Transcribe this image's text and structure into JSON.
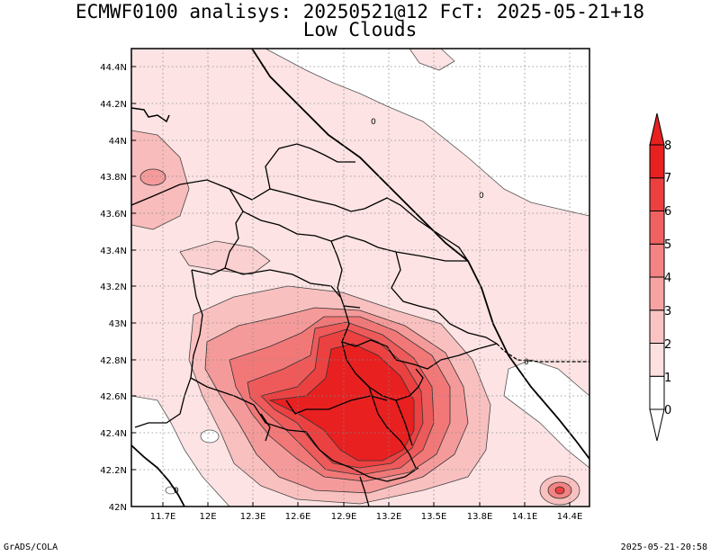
{
  "title": {
    "line1": "ECMWF0100 analisys: 20250521@12 FcT: 2025-05-21+18",
    "line2": "Low Clouds"
  },
  "map": {
    "lat_labels": [
      "42N",
      "42.2N",
      "42.4N",
      "42.6N",
      "42.8N",
      "43N",
      "43.2N",
      "43.4N",
      "43.6N",
      "43.8N",
      "44N",
      "44.2N",
      "44.4N"
    ],
    "lon_labels": [
      "11.7E",
      "12E",
      "12.3E",
      "12.6E",
      "12.9E",
      "13.2E",
      "13.5E",
      "13.8E",
      "14.1E",
      "14.4E"
    ],
    "contour_labels": [
      "0",
      "0",
      "0",
      "0"
    ],
    "grid": true,
    "field": "low cloud cover (oktas)"
  },
  "colorbar": {
    "labels": [
      "0",
      "1",
      "2",
      "3",
      "4",
      "5",
      "6",
      "7",
      "8"
    ],
    "colors": [
      "#ffffff",
      "#fde0e0",
      "#fbc4c4",
      "#f8a3a3",
      "#f48383",
      "#f06262",
      "#ec4040",
      "#e82020"
    ]
  },
  "footer": {
    "left": "GrADS/COLA",
    "right": "2025-05-21-20:58"
  }
}
